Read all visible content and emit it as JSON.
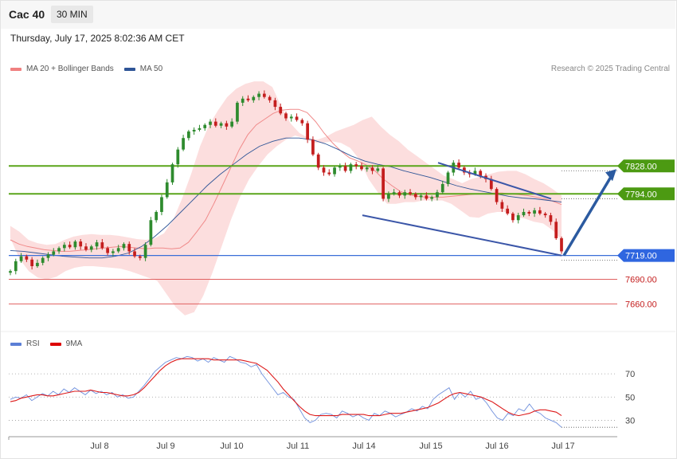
{
  "header": {
    "instrument": "Cac 40",
    "timeframe": "30 MIN",
    "timestamp": "Thursday, July 17, 2025 8:02:36 AM CET"
  },
  "legend": {
    "items": [
      {
        "label": "MA 20 + Bollinger Bands",
        "color": "#f08080"
      },
      {
        "label": "MA 50",
        "color": "#2f5597"
      }
    ],
    "credit": "Research © 2025 Trading Central"
  },
  "rsi_legend": {
    "items": [
      {
        "label": "RSI",
        "color": "#5b7fd6"
      },
      {
        "label": "9MA",
        "color": "#dd0000"
      }
    ]
  },
  "colors": {
    "up": "#2e8b2e",
    "down": "#c41e1e",
    "resistance": "#5aa51a",
    "pivot": "#3a6fd8",
    "support": "#e06060",
    "ma50": "#2f5597",
    "band": "#fbd3d3",
    "arrow": "#2b5aa0"
  },
  "chart_data": [
    {
      "type": "candlestick",
      "x_labels": [
        "Jul 8",
        "Jul 9",
        "Jul 10",
        "Jul 11",
        "Jul 14",
        "Jul 15",
        "Jul 16",
        "Jul 17"
      ],
      "ylim": [
        7640,
        7935
      ],
      "levels": [
        {
          "value": 7828.0,
          "label": "7828.00",
          "kind": "resistance"
        },
        {
          "value": 7794.0,
          "label": "7794.00",
          "kind": "resistance"
        },
        {
          "value": 7719.0,
          "label": "7719.00",
          "kind": "pivot"
        },
        {
          "value": 7690.0,
          "label": "7690.00",
          "kind": "support"
        },
        {
          "value": 7660.0,
          "label": "7660.00",
          "kind": "support"
        }
      ],
      "close_path": [
        7700,
        7712,
        7718,
        7714,
        7706,
        7710,
        7716,
        7720,
        7724,
        7728,
        7732,
        7729,
        7736,
        7730,
        7726,
        7730,
        7735,
        7728,
        7722,
        7724,
        7728,
        7733,
        7724,
        7718,
        7716,
        7732,
        7762,
        7772,
        7790,
        7808,
        7830,
        7848,
        7862,
        7870,
        7872,
        7874,
        7878,
        7882,
        7877,
        7880,
        7876,
        7882,
        7905,
        7910,
        7908,
        7912,
        7916,
        7912,
        7908,
        7900,
        7892,
        7886,
        7888,
        7884,
        7880,
        7860,
        7842,
        7826,
        7820,
        7818,
        7826,
        7828,
        7822,
        7830,
        7828,
        7824,
        7826,
        7822,
        7825,
        7788,
        7794,
        7796,
        7792,
        7796,
        7794,
        7790,
        7792,
        7788,
        7790,
        7796,
        7806,
        7820,
        7832,
        7826,
        7820,
        7818,
        7822,
        7816,
        7812,
        7800,
        7784,
        7776,
        7770,
        7762,
        7768,
        7772,
        7770,
        7774,
        7770,
        7768,
        7760,
        7740,
        7724
      ],
      "ma20": [
        7738,
        7733,
        7730,
        7728,
        7726,
        7725,
        7724,
        7724,
        7725,
        7726,
        7727,
        7728,
        7729,
        7730,
        7729,
        7728,
        7727,
        7728,
        7728,
        7727,
        7728,
        7735,
        7748,
        7762,
        7782,
        7804,
        7826,
        7848,
        7866,
        7878,
        7885,
        7892,
        7896,
        7897,
        7897,
        7893,
        7882,
        7868,
        7856,
        7846,
        7838,
        7834,
        7829,
        7822,
        7812,
        7804,
        7797,
        7793,
        7791,
        7790,
        7790,
        7790,
        7791,
        7792,
        7793,
        7794,
        7794,
        7795,
        7795,
        7794,
        7793,
        7792,
        7790,
        7788,
        7785,
        7781
      ],
      "ma50": [
        7725,
        7724,
        7722,
        7720,
        7718,
        7717,
        7716,
        7716,
        7718,
        7722,
        7730,
        7742,
        7756,
        7772,
        7788,
        7804,
        7818,
        7830,
        7842,
        7852,
        7858,
        7862,
        7862,
        7860,
        7855,
        7848,
        7840,
        7834,
        7830,
        7827,
        7822,
        7818,
        7814,
        7809,
        7804,
        7800,
        7797,
        7794,
        7791,
        7789,
        7788,
        7786,
        7784
      ],
      "bb_upper": [
        7755,
        7748,
        7738,
        7734,
        7732,
        7733,
        7738,
        7742,
        7744,
        7745,
        7744,
        7744,
        7743,
        7741,
        7739,
        7738,
        7740,
        7746,
        7762,
        7788,
        7818,
        7852,
        7878,
        7896,
        7912,
        7922,
        7928,
        7931,
        7931,
        7924,
        7900,
        7880,
        7868,
        7862,
        7860,
        7864,
        7870,
        7874,
        7878,
        7884,
        7888,
        7876,
        7866,
        7858,
        7848,
        7840,
        7832,
        7824,
        7816,
        7812,
        7807,
        7812,
        7815,
        7818,
        7821,
        7822,
        7822,
        7818,
        7812,
        7807,
        7800,
        7792
      ],
      "bb_lower": [
        7740,
        7715,
        7700,
        7692,
        7690,
        7693,
        7700,
        7704,
        7706,
        7706,
        7705,
        7704,
        7703,
        7700,
        7696,
        7692,
        7688,
        7672,
        7656,
        7646,
        7650,
        7670,
        7698,
        7730,
        7762,
        7790,
        7812,
        7828,
        7842,
        7852,
        7860,
        7865,
        7862,
        7856,
        7856,
        7858,
        7856,
        7850,
        7836,
        7812,
        7796,
        7782,
        7782,
        7784,
        7784,
        7786,
        7786,
        7786,
        7782,
        7774,
        7766,
        7765,
        7770,
        7772,
        7772,
        7766,
        7764,
        7760,
        7758,
        7750,
        7738
      ],
      "wedge": {
        "upper": [
          [
            7832,
            0
          ],
          [
            7788,
            1
          ]
        ],
        "lower": [
          [
            7768,
            0
          ],
          [
            7719,
            1
          ]
        ]
      },
      "projection_target": 7828
    },
    {
      "type": "line",
      "name": "RSI",
      "ylim": [
        20,
        90
      ],
      "ticks": [
        70,
        50,
        30
      ],
      "tick_labels": [
        "70",
        "50",
        "30"
      ],
      "rsi": [
        48,
        50,
        49,
        52,
        47,
        50,
        53,
        51,
        55,
        52,
        57,
        54,
        58,
        55,
        52,
        56,
        53,
        55,
        52,
        54,
        50,
        52,
        49,
        50,
        55,
        60,
        66,
        72,
        76,
        80,
        82,
        84,
        83,
        85,
        84,
        81,
        83,
        80,
        84,
        82,
        80,
        85,
        83,
        80,
        79,
        76,
        78,
        70,
        64,
        58,
        52,
        54,
        50,
        48,
        40,
        32,
        28,
        30,
        35,
        36,
        35,
        32,
        38,
        36,
        33,
        35,
        32,
        30,
        36,
        34,
        38,
        36,
        33,
        35,
        37,
        40,
        38,
        42,
        40,
        48,
        52,
        55,
        58,
        48,
        54,
        50,
        55,
        48,
        50,
        45,
        38,
        32,
        30,
        36,
        34,
        40,
        38,
        44,
        38,
        36,
        32,
        30,
        28,
        24
      ],
      "ma9": [
        46,
        47,
        49,
        50,
        51,
        52,
        52,
        51,
        51,
        52,
        53,
        54,
        55,
        55,
        55,
        56,
        55,
        54,
        54,
        53,
        52,
        51,
        51,
        52,
        54,
        58,
        63,
        68,
        73,
        77,
        80,
        82,
        83,
        83,
        83,
        83,
        83,
        83,
        82,
        82,
        82,
        82,
        82,
        82,
        81,
        80,
        79,
        76,
        73,
        68,
        63,
        57,
        52,
        47,
        42,
        38,
        35,
        34,
        34,
        34,
        34,
        34,
        35,
        35,
        35,
        35,
        35,
        34,
        34,
        34,
        35,
        36,
        36,
        36,
        37,
        38,
        39,
        40,
        41,
        43,
        45,
        48,
        51,
        53,
        54,
        53,
        52,
        51,
        50,
        48,
        46,
        43,
        40,
        37,
        35,
        34,
        35,
        36,
        38,
        39,
        39,
        38,
        37,
        34
      ]
    }
  ]
}
